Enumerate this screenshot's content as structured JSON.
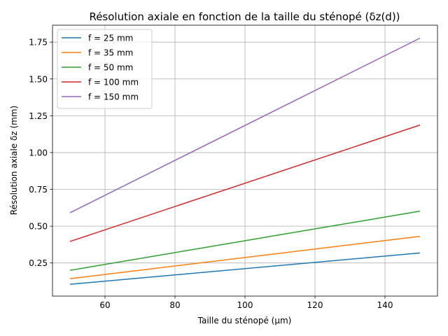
{
  "chart_data": {
    "type": "line",
    "title": "Résolution axiale en fonction de la taille du sténopé (δz(d))",
    "xlabel": "Taille du sténopé (µm)",
    "ylabel": "Résolution axiale δz (mm)",
    "xlim": [
      45,
      155
    ],
    "ylim": [
      0.025,
      1.865
    ],
    "xticks": [
      60,
      80,
      100,
      120,
      140
    ],
    "xtick_labels": [
      "60",
      "80",
      "100",
      "120",
      "140"
    ],
    "yticks": [
      0.25,
      0.5,
      0.75,
      1.0,
      1.25,
      1.5,
      1.75
    ],
    "ytick_labels": [
      "0.25",
      "0.50",
      "0.75",
      "1.00",
      "1.25",
      "1.50",
      "1.75"
    ],
    "grid": true,
    "legend_position": "upper-left",
    "series": [
      {
        "name": "f = 25 mm",
        "color": "#1f77b4",
        "x": [
          50,
          150
        ],
        "y": [
          0.105,
          0.318
        ]
      },
      {
        "name": "f = 35 mm",
        "color": "#ff7f0e",
        "x": [
          50,
          150
        ],
        "y": [
          0.143,
          0.431
        ]
      },
      {
        "name": "f = 50 mm",
        "color": "#2ca02c",
        "x": [
          50,
          150
        ],
        "y": [
          0.2,
          0.602
        ]
      },
      {
        "name": "f = 100 mm",
        "color": "#d62728",
        "x": [
          50,
          150
        ],
        "y": [
          0.396,
          1.187
        ]
      },
      {
        "name": "f = 150 mm",
        "color": "#9467bd",
        "x": [
          50,
          150
        ],
        "y": [
          0.591,
          1.777
        ]
      }
    ]
  }
}
